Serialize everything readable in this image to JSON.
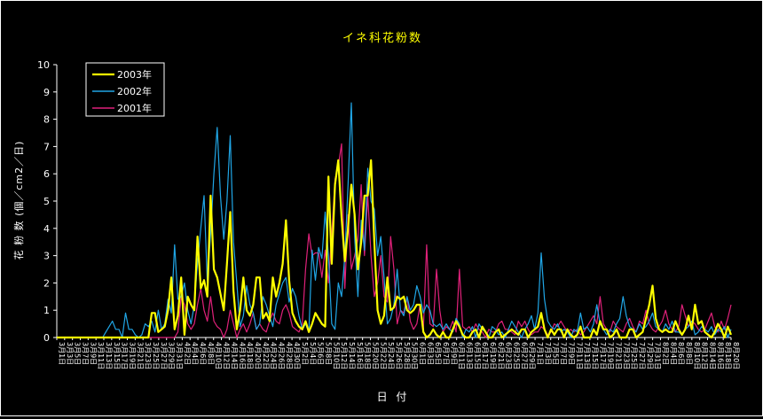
{
  "chart_data": {
    "type": "line",
    "title": "イネ科花粉数",
    "xlabel": "日 付",
    "ylabel": "花 粉 数 (個／cm2／日)",
    "ylim": [
      0,
      10
    ],
    "yticks": [
      "0",
      "1",
      "2",
      "3",
      "4",
      "5",
      "6",
      "7",
      "8",
      "9",
      "10"
    ],
    "grid": false,
    "legend_position": "top-left",
    "x_start": "3月1日",
    "x_end": "8月20日",
    "x_tick_labels": [
      "3月1日",
      "3月3日",
      "3月5日",
      "3月7日",
      "3月9日",
      "3月11日",
      "3月13日",
      "3月15日",
      "3月17日",
      "3月19日",
      "3月21日",
      "3月23日",
      "3月25日",
      "3月27日",
      "3月29日",
      "3月31日",
      "4月2日",
      "4月4日",
      "4月6日",
      "4月8日",
      "4月10日",
      "4月12日",
      "4月14日",
      "4月16日",
      "4月18日",
      "4月20日",
      "4月22日",
      "4月24日",
      "4月26日",
      "4月28日",
      "4月30日",
      "5月2日",
      "5月4日",
      "5月6日",
      "5月8日",
      "5月10日",
      "5月12日",
      "5月14日",
      "5月16日",
      "5月18日",
      "5月20日",
      "5月22日",
      "5月24日",
      "5月26日",
      "5月28日",
      "5月30日",
      "6月1日",
      "6月3日",
      "6月5日",
      "6月7日",
      "6月9日",
      "6月11日",
      "6月13日",
      "6月15日",
      "6月17日",
      "6月19日",
      "6月21日",
      "6月23日",
      "6月25日",
      "6月27日",
      "6月29日",
      "7月1日",
      "7月3日",
      "7月5日",
      "7月7日",
      "7月9日",
      "7月11日",
      "7月13日",
      "7月15日",
      "7月17日",
      "7月19日",
      "7月21日",
      "7月23日",
      "7月25日",
      "7月27日",
      "7月29日",
      "7月31日",
      "8月2日",
      "8月4日",
      "8月6日",
      "8月8日",
      "8月10日",
      "8月12日",
      "8月14日",
      "8月16日",
      "8月18日",
      "8月20日"
    ],
    "series": [
      {
        "name": "2003年",
        "color": "#ffff00",
        "width": 2.2,
        "values": [
          0,
          0,
          0,
          0,
          0,
          0,
          0,
          0,
          0,
          0,
          0,
          0,
          0,
          0,
          0,
          0,
          0,
          0,
          0,
          0,
          0,
          0,
          0,
          0,
          0,
          0,
          0,
          0,
          0,
          0.9,
          0.9,
          0.2,
          0.3,
          0.4,
          1,
          2.2,
          0.3,
          0.8,
          2.2,
          0.1,
          1.5,
          1.2,
          1,
          3.7,
          1.8,
          2.1,
          1.5,
          5.2,
          2.5,
          2.2,
          1.6,
          1,
          2.7,
          4.6,
          1.7,
          0.3,
          1,
          2.2,
          1,
          0.8,
          1.2,
          2.2,
          2.2,
          0.7,
          0.9,
          0.6,
          2.2,
          1.5,
          2,
          2.7,
          4.3,
          2.1,
          0.9,
          0.6,
          0.4,
          0.3,
          0.6,
          0.2,
          0.5,
          0.9,
          0.7,
          0.5,
          0.4,
          5.9,
          2.7,
          5.6,
          6.5,
          4.4,
          2.8,
          4,
          5.6,
          4.5,
          2.5,
          3.5,
          5.2,
          5.2,
          6.5,
          3.5,
          1,
          0.5,
          0.8,
          2.2,
          1,
          1.1,
          1.5,
          1.4,
          1.5,
          1,
          0.9,
          1,
          1.2,
          1.2,
          0.2,
          0,
          0.1,
          0.3,
          0.1,
          0,
          0.2,
          0,
          0,
          0.3,
          0.6,
          0.4,
          0.1,
          0,
          0,
          0.2,
          0.3,
          0,
          0.4,
          0.2,
          0,
          0,
          0.2,
          0.3,
          0,
          0.1,
          0.2,
          0.3,
          0.2,
          0.1,
          0.3,
          0.3,
          0,
          0.2,
          0.3,
          0.4,
          0.9,
          0.3,
          0,
          0.3,
          0.1,
          0.3,
          0.3,
          0,
          0.3,
          0.1,
          0,
          0.1,
          0.4,
          0,
          0,
          0,
          0.3,
          0.1,
          0.6,
          0.3,
          0.3,
          0,
          0.1,
          0.3,
          0,
          0,
          0,
          0.3,
          0.3,
          0,
          0.1,
          0.2,
          0.7,
          1.2,
          1.9,
          0.7,
          0.3,
          0.2,
          0.3,
          0.2,
          0.2,
          0.6,
          0.3,
          0.1,
          0.3,
          0.8,
          0.3,
          1.2,
          0.5,
          0.6,
          0.2,
          0.1,
          0,
          0.2,
          0.5,
          0.3,
          0,
          0.4,
          0.1
        ]
      },
      {
        "name": "2002年",
        "color": "#20a6e6",
        "width": 1.2,
        "values": [
          0,
          0,
          0,
          0,
          0,
          0,
          0,
          0,
          0,
          0,
          0,
          0,
          0,
          0,
          0,
          0.2,
          0.4,
          0.6,
          0.3,
          0.3,
          0,
          0.9,
          0.3,
          0.3,
          0.1,
          0,
          0.1,
          0.5,
          0.4,
          0.6,
          0.2,
          1,
          0.3,
          0.5,
          1.4,
          0.9,
          3.4,
          1.4,
          1.5,
          2,
          1,
          0.5,
          1.2,
          2.7,
          4,
          5.2,
          2,
          3.8,
          6,
          7.7,
          5.2,
          3.6,
          5,
          7.4,
          3.5,
          2,
          0.4,
          0.8,
          1.9,
          1.2,
          0.9,
          0.3,
          0.5,
          1.5,
          1.2,
          0.8,
          0.4,
          1.2,
          1.6,
          2,
          2.2,
          1.3,
          1.8,
          1.5,
          0.8,
          0.3,
          0.5,
          0.2,
          3.2,
          2.1,
          3.3,
          2.9,
          4.6,
          3,
          0.5,
          0.3,
          2,
          1.5,
          3,
          5.6,
          8.6,
          3.7,
          1.5,
          4.3,
          3.2,
          6.2,
          5,
          4.7,
          3,
          3.7,
          2.2,
          0.5,
          0.7,
          1.2,
          2.5,
          1,
          0.8,
          1.5,
          1,
          1.2,
          1.9,
          1.5,
          0.9,
          1.2,
          1,
          0.5,
          0.4,
          0.5,
          0.3,
          0.5,
          0.3,
          0.2,
          0.7,
          0.5,
          0,
          0.3,
          0.2,
          0.4,
          0,
          0.5,
          0.3,
          0.2,
          0,
          0.4,
          0.3,
          0.1,
          0.2,
          0,
          0.3,
          0.6,
          0.4,
          0.2,
          0,
          0.3,
          0.5,
          0.8,
          0.3,
          0.9,
          3.1,
          1.4,
          0.6,
          0.4,
          0.3,
          0.5,
          0.2,
          0.3,
          0.2,
          0,
          0.3,
          0.2,
          0.9,
          0.3,
          0.4,
          0.2,
          0.5,
          1.2,
          0.5,
          0.3,
          0.1,
          0.3,
          0.2,
          0.5,
          0.7,
          1.5,
          0.8,
          0.4,
          0.3,
          0.2,
          0.5,
          0.3,
          0.4,
          0.6,
          0.9,
          0.4,
          0.3,
          0.2,
          0.5,
          0.3,
          0.6,
          0.2,
          0.2,
          0.1,
          0.3,
          0.4,
          0.6,
          0.1,
          0.2,
          0.4,
          0.3,
          0.2,
          0.4,
          0.1,
          0.3,
          0.2,
          0.4,
          0,
          0.3
        ]
      },
      {
        "name": "2001年",
        "color": "#e0217a",
        "width": 1.2,
        "values": [
          0,
          0,
          0,
          0,
          0,
          0,
          0,
          0,
          0,
          0,
          0,
          0,
          0,
          0,
          0,
          0,
          0,
          0,
          0,
          0,
          0,
          0,
          0,
          0,
          0,
          0,
          0,
          0,
          0,
          0,
          0,
          0,
          0,
          0,
          0,
          0,
          0,
          0.2,
          1.5,
          1.2,
          0.5,
          0.3,
          0.5,
          1.2,
          1.8,
          1,
          0.6,
          1.5,
          0.6,
          0.4,
          0.3,
          0,
          0.3,
          1,
          0.5,
          0,
          0.3,
          0.5,
          0.2,
          0.5,
          0.9,
          0.3,
          0.5,
          0.3,
          0.2,
          0.6,
          0.9,
          0.6,
          0.5,
          1,
          1.2,
          0.9,
          0.4,
          0.3,
          0.2,
          0.5,
          2.5,
          3.8,
          3,
          3.1,
          3.1,
          2.2,
          3.2,
          2,
          3.8,
          5.8,
          6.3,
          7.1,
          1.8,
          4.5,
          2.5,
          3,
          3.6,
          5.6,
          3,
          5.2,
          3,
          1.5,
          2,
          3,
          1.5,
          1.3,
          3.7,
          2.5,
          0.5,
          1,
          0.9,
          1.5,
          0.6,
          0.3,
          0.5,
          1.2,
          0.3,
          3.4,
          0.5,
          0.4,
          2.5,
          1,
          0.2,
          0.4,
          0.3,
          0.6,
          0.2,
          2.5,
          0.4,
          0.3,
          0.4,
          0.2,
          0.5,
          0.3,
          0.2,
          0,
          0.3,
          0.2,
          0.2,
          0.5,
          0.6,
          0.3,
          0.3,
          0.2,
          0.1,
          0.6,
          0.4,
          0.6,
          0.3,
          0.1,
          0.2,
          0.2,
          0.4,
          0.3,
          0.1,
          0.2,
          0.5,
          0.4,
          0.6,
          0.4,
          0.2,
          0.3,
          0.2,
          0.3,
          0.1,
          0.2,
          0.4,
          0.6,
          0.8,
          0.5,
          1.5,
          0.5,
          0.3,
          0.2,
          0.6,
          0.4,
          0.3,
          0.2,
          0.5,
          0.7,
          0.4,
          0.2,
          0.6,
          0.5,
          1,
          0.5,
          0.3,
          0.2,
          0.4,
          0.6,
          1,
          0.5,
          0.3,
          0.2,
          0.4,
          1.2,
          0.8,
          0.4,
          0.6,
          0.5,
          0.3,
          0.2,
          0.3,
          0.6,
          0.9,
          0.4,
          0.2,
          0.6,
          0.3,
          0.7,
          1.2
        ]
      }
    ]
  }
}
